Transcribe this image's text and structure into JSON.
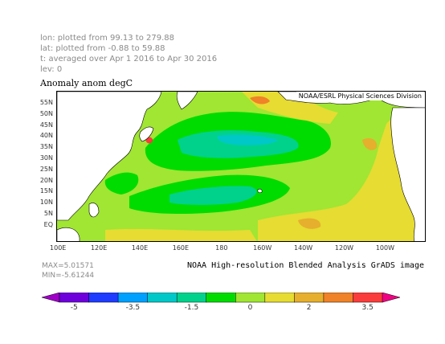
{
  "meta": {
    "lon": "lon: plotted from 99.13 to 279.88",
    "lat": "lat: plotted from -0.88 to 59.88",
    "time": "t: averaged over Apr 1 2016 to Apr 30 2016",
    "lev": "lev: 0"
  },
  "title": "Anomaly anom degC",
  "credit": "NOAA/ESRL Physical Sciences Division",
  "y_ticks": [
    "55N",
    "50N",
    "45N",
    "40N",
    "35N",
    "30N",
    "25N",
    "20N",
    "15N",
    "10N",
    "5N",
    "EQ"
  ],
  "x_ticks": [
    "100E",
    "120E",
    "140E",
    "160E",
    "180",
    "160W",
    "140W",
    "120W",
    "100W"
  ],
  "max_label": "MAX=5.01571",
  "min_label": "MIN=-5.61244",
  "footer": "NOAA High-resolution Blended Analysis GrADS image",
  "colorbar": {
    "colors": [
      "#a000c8",
      "#6e00dc",
      "#1e3cff",
      "#00a0ff",
      "#00c8c8",
      "#00d28c",
      "#00dc00",
      "#a0e632",
      "#e6dc32",
      "#e6af2d",
      "#f08228",
      "#fa3c3c",
      "#f00082"
    ],
    "labels": [
      "-5",
      "-3.5",
      "-1.5",
      "0",
      "2",
      "3.5"
    ]
  },
  "map_colors": {
    "land": "#ffffff",
    "neutral": "#a0e632",
    "cool": "#00dc00",
    "cooler": "#00d28c",
    "cold": "#00c8c8",
    "coldest": "#00a0ff",
    "warm": "#e6dc32",
    "warmer": "#e6af2d",
    "hot": "#f08228",
    "hottest": "#fa3c3c"
  }
}
